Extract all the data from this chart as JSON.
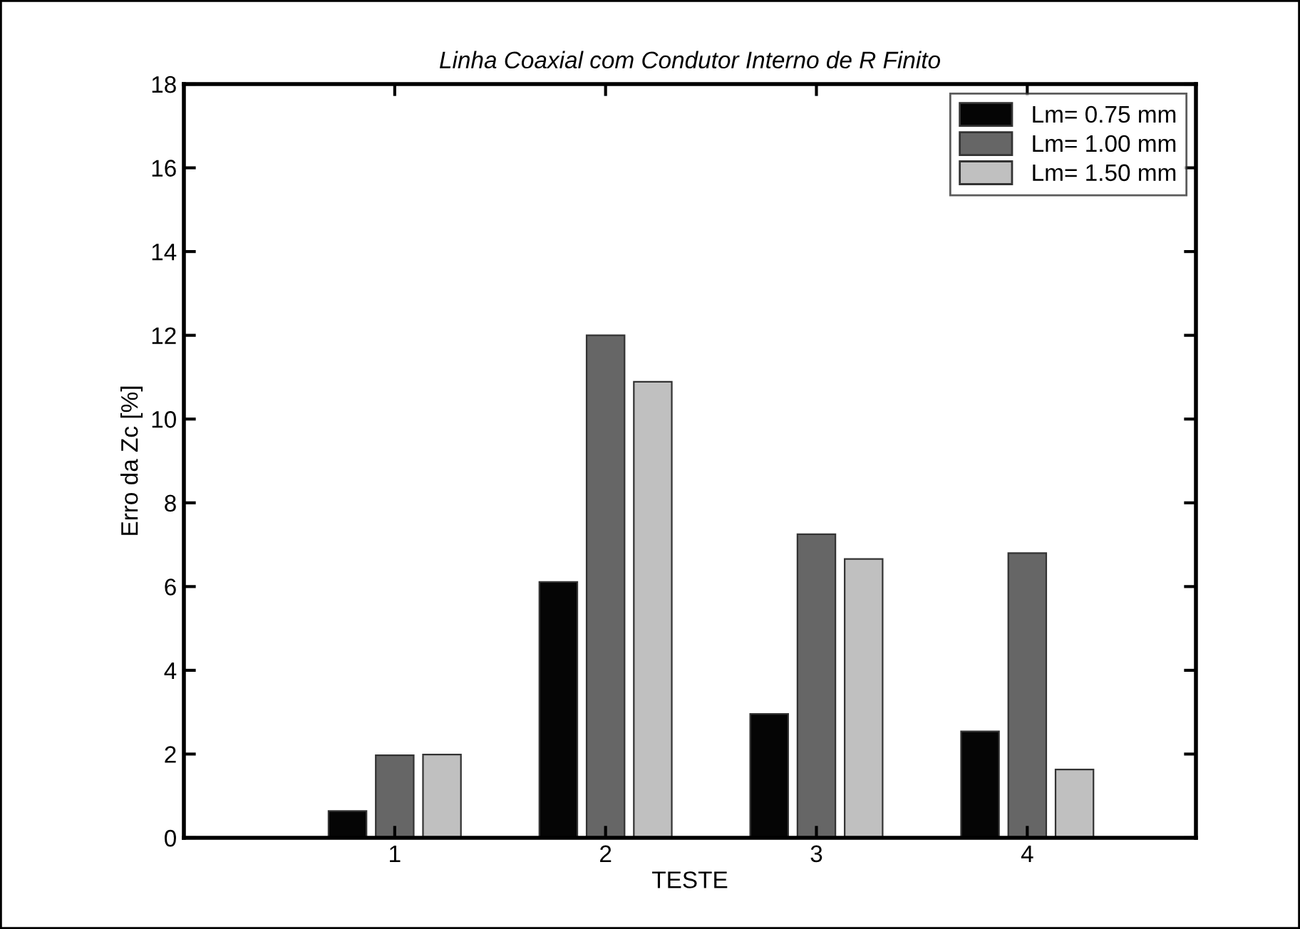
{
  "chart_data": {
    "type": "bar",
    "title": "Linha Coaxial com Condutor Interno de R Finito",
    "xlabel": "TESTE",
    "ylabel": "Erro da Zc [%]",
    "x": [
      1,
      2,
      3,
      4
    ],
    "xlim": [
      0,
      4.8
    ],
    "xticks": [
      1,
      2,
      3,
      4
    ],
    "ylim": [
      0,
      18
    ],
    "yticks": [
      0,
      2,
      4,
      6,
      8,
      10,
      12,
      14,
      16,
      18
    ],
    "series": [
      {
        "name": "Lm= 0.75 mm",
        "color": "#050505",
        "values": [
          0.64,
          6.11,
          2.96,
          2.54
        ]
      },
      {
        "name": "Lm= 1.00 mm",
        "color": "#666666",
        "values": [
          1.97,
          12.0,
          7.25,
          6.8
        ]
      },
      {
        "name": "Lm= 1.50 mm",
        "color": "#c0c0c0",
        "values": [
          1.99,
          10.89,
          6.66,
          1.63
        ]
      }
    ],
    "grid": false,
    "legend": "top right"
  }
}
